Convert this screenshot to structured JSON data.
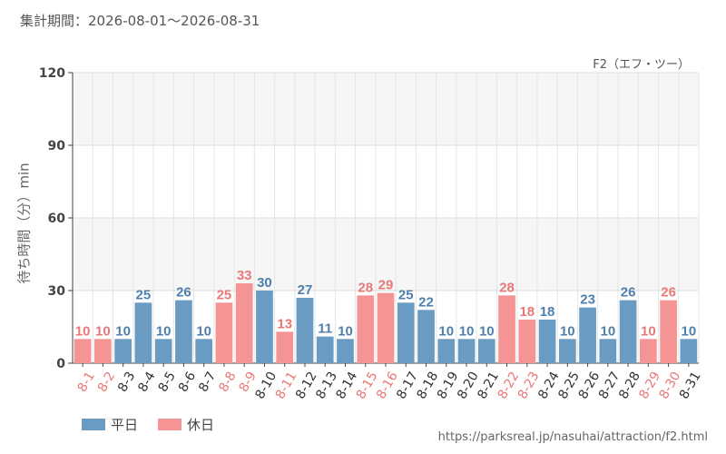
{
  "header": {
    "period": "集計期間：2026-08-01～2026-08-31",
    "attraction": "F2（エフ・ツー）"
  },
  "legend": {
    "weekday_label": "平日",
    "holiday_label": "休日"
  },
  "source_url": "https://parksreal.jp/nasuhai/attraction/f2.html",
  "colors": {
    "weekday": "#6a9bc3",
    "holiday": "#f49494",
    "weekday_text": "#4f7fae",
    "holiday_text": "#ea7878"
  },
  "chart_data": {
    "type": "bar",
    "ylabel": "待ち時間（分）min",
    "ylim": [
      0,
      120
    ],
    "yticks": [
      0,
      30,
      60,
      90,
      120
    ],
    "grid": true,
    "legend_position": "bottom-left",
    "categories": [
      "8-1",
      "8-2",
      "8-3",
      "8-4",
      "8-5",
      "8-6",
      "8-7",
      "8-8",
      "8-9",
      "8-10",
      "8-11",
      "8-12",
      "8-13",
      "8-14",
      "8-15",
      "8-16",
      "8-17",
      "8-18",
      "8-19",
      "8-20",
      "8-21",
      "8-22",
      "8-23",
      "8-24",
      "8-25",
      "8-26",
      "8-27",
      "8-28",
      "8-29",
      "8-30",
      "8-31"
    ],
    "values": [
      10,
      10,
      10,
      25,
      10,
      26,
      10,
      25,
      33,
      30,
      13,
      27,
      11,
      10,
      28,
      29,
      25,
      22,
      10,
      10,
      10,
      28,
      18,
      18,
      10,
      23,
      10,
      26,
      10,
      26,
      10
    ],
    "day_type": [
      "holiday",
      "holiday",
      "weekday",
      "weekday",
      "weekday",
      "weekday",
      "weekday",
      "holiday",
      "holiday",
      "weekday",
      "holiday",
      "weekday",
      "weekday",
      "weekday",
      "holiday",
      "holiday",
      "weekday",
      "weekday",
      "weekday",
      "weekday",
      "weekday",
      "holiday",
      "holiday",
      "weekday",
      "weekday",
      "weekday",
      "weekday",
      "weekday",
      "holiday",
      "holiday",
      "weekday"
    ]
  }
}
